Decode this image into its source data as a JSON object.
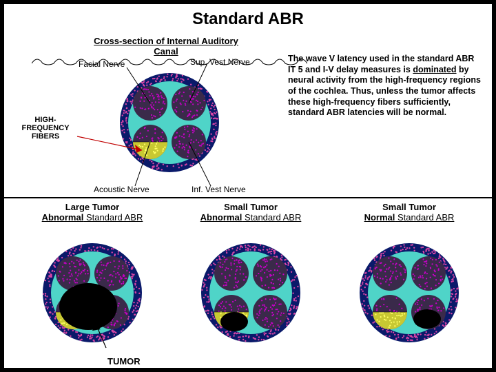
{
  "title": "Standard ABR",
  "cross_section": {
    "subtitle": "Cross-section of Internal Auditory Canal",
    "labels": {
      "facial": "Facial Nerve",
      "sup_vest": "Sup. Vest Nerve",
      "acoustic": "Acoustic Nerve",
      "inf_vest": "Inf. Vest Nerve",
      "high_freq": "HIGH-FREQUENCY FIBERS"
    },
    "colors": {
      "outer_ring": "#0a1a6a",
      "outer_ring_dots": "#d946a6",
      "inner_bg": "#4fd4c8",
      "nerve_fill_dark": "#3a2a4a",
      "nerve_dots": "#c800c8",
      "acoustic_hf_fill": "#c8c832",
      "acoustic_hf_dots": "#ffff66",
      "tumor_fill": "#000000"
    },
    "geometry": {
      "outer_r": 72,
      "inner_r": 60,
      "nerve_r": 25,
      "nerve_centers": [
        [
          -28,
          -28
        ],
        [
          28,
          -28
        ],
        [
          -28,
          28
        ],
        [
          28,
          28
        ]
      ]
    }
  },
  "explain": {
    "p1": "The wave V latency used in the standard ABR IT 5 and I-V delay measures is ",
    "dom": "dominated",
    "p2": " by neural activity from the high-frequency regions of the cochlea.  Thus, unless the tumor affects these high-frequency fibers sufficiently, standard ABR latencies will be normal."
  },
  "bottom": {
    "tumor_label": "TUMOR",
    "panels": [
      {
        "line1": "Large Tumor",
        "line2a": "Abnormal",
        "line2b": " Standard ABR",
        "tumor": "large"
      },
      {
        "line1": "Small Tumor",
        "line2a": "Abnormal",
        "line2b": " Standard ABR",
        "tumor": "small_hf"
      },
      {
        "line1": "Small Tumor",
        "line2a": "Normal",
        "line2b": " Standard ABR",
        "tumor": "small_low"
      }
    ]
  }
}
